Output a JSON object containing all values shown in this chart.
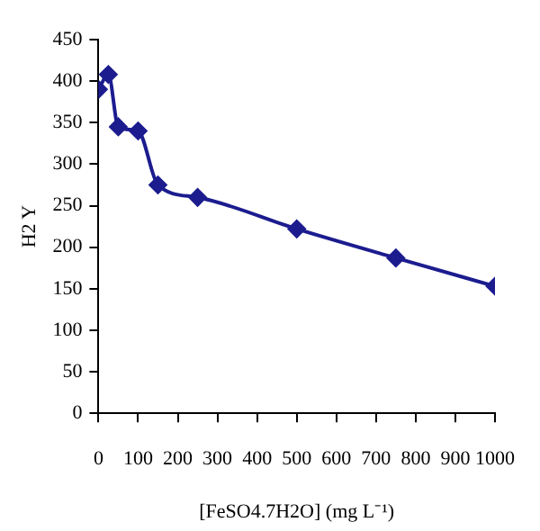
{
  "chart_data": {
    "type": "line",
    "xlabel": "[FeSO4.7H2O] (mg L⁻¹)",
    "ylabel": "H2 Y",
    "x": [
      0,
      25,
      50,
      100,
      150,
      250,
      500,
      750,
      1000
    ],
    "series": [
      {
        "color": "#1c1c8f",
        "values": [
          390,
          408,
          345,
          340,
          275,
          260,
          222,
          187,
          153
        ]
      }
    ],
    "xlim": [
      0,
      1000
    ],
    "xticks": [
      0,
      100,
      200,
      300,
      400,
      500,
      600,
      700,
      800,
      900,
      1000
    ],
    "ylim": [
      0,
      450
    ],
    "yticks": [
      0,
      50,
      100,
      150,
      200,
      250,
      300,
      350,
      400,
      450
    ],
    "grid": false,
    "legend": false,
    "marker": "diamond",
    "line_style": "solid"
  }
}
